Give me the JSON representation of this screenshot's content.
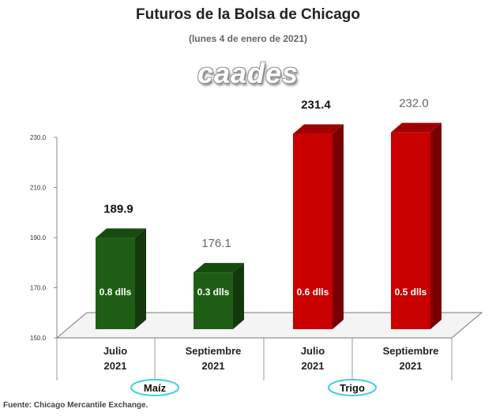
{
  "title": "Futuros de la Bolsa de Chicago",
  "subtitle": "(lunes 4 de enero de 2021)",
  "logo_text": "caades",
  "source": "Fuente: Chicago Mercantile Exchange.",
  "chart_data": {
    "type": "bar",
    "categories": [
      "Julio 2021",
      "Septiembre 2021",
      "Julio 2021",
      "Septiembre 2021"
    ],
    "category_lines": [
      [
        "Julio",
        "2021"
      ],
      [
        "Septiembre",
        "2021"
      ],
      [
        "Julio",
        "2021"
      ],
      [
        "Septiembre",
        "2021"
      ]
    ],
    "values": [
      189.9,
      176.1,
      231.4,
      232.0
    ],
    "value_labels": [
      "189.9",
      "176.1",
      "231.4",
      "232.0"
    ],
    "inner_labels": [
      "0.8 dlls",
      "0.3 dlls",
      "0.6 dlls",
      "0.5 dlls"
    ],
    "groups": [
      {
        "name": "Maíz",
        "members": [
          0,
          1
        ],
        "color": "#1e5e14"
      },
      {
        "name": "Trigo",
        "members": [
          2,
          3
        ],
        "color": "#c80000"
      }
    ],
    "ylim": [
      150,
      230
    ],
    "yticks": [
      "150.0",
      "170.0",
      "190.0",
      "210.0",
      "230.0"
    ],
    "ytick_values": [
      150,
      170,
      190,
      210,
      230
    ],
    "grid": false
  }
}
